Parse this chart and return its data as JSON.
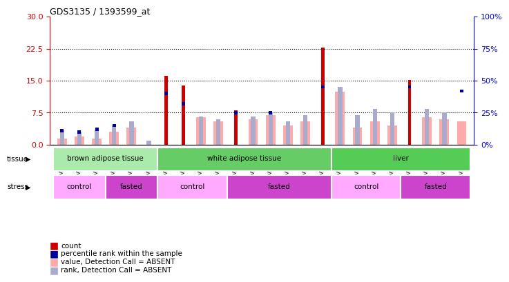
{
  "title": "GDS3135 / 1393599_at",
  "samples": [
    "GSM184414",
    "GSM184415",
    "GSM184416",
    "GSM184417",
    "GSM184418",
    "GSM184419",
    "GSM184420",
    "GSM184421",
    "GSM184422",
    "GSM184423",
    "GSM184424",
    "GSM184425",
    "GSM184426",
    "GSM184427",
    "GSM184428",
    "GSM184429",
    "GSM184430",
    "GSM184431",
    "GSM184432",
    "GSM184433",
    "GSM184434",
    "GSM184435",
    "GSM184436",
    "GSM184437"
  ],
  "count": [
    0,
    0,
    0,
    0,
    0,
    0,
    16.2,
    13.8,
    0,
    0,
    8.0,
    0,
    0,
    0,
    0,
    22.8,
    0,
    0,
    0,
    0,
    15.1,
    0,
    0,
    0
  ],
  "percentile_rank_pct": [
    11,
    10,
    12,
    15,
    0,
    0,
    40,
    32,
    0,
    0,
    25,
    0,
    25,
    0,
    0,
    45,
    0,
    0,
    0,
    0,
    45,
    0,
    0,
    42
  ],
  "value_absent": [
    1.5,
    2.0,
    1.5,
    3.0,
    4.0,
    0,
    0,
    0,
    6.5,
    5.5,
    0,
    6.0,
    7.0,
    4.5,
    5.5,
    0,
    12.5,
    4.0,
    5.5,
    4.5,
    0,
    6.5,
    6.0,
    5.5
  ],
  "rank_absent_pct": [
    11,
    10,
    12,
    15,
    18,
    3,
    0,
    0,
    22,
    20,
    0,
    22,
    25,
    18,
    23,
    0,
    45,
    23,
    28,
    25,
    0,
    28,
    25,
    0
  ],
  "ylim_left": [
    0,
    30
  ],
  "yticks_left": [
    0,
    7.5,
    15,
    22.5,
    30
  ],
  "ylim_right": [
    0,
    100
  ],
  "yticks_right": [
    0,
    25,
    50,
    75,
    100
  ],
  "color_count": "#cc0000",
  "color_percentile": "#000099",
  "color_value_absent": "#ffaaaa",
  "color_rank_absent": "#aaaacc",
  "tissue_groups": [
    {
      "label": "brown adipose tissue",
      "start": 0,
      "end": 6,
      "color": "#aaeaaa"
    },
    {
      "label": "white adipose tissue",
      "start": 6,
      "end": 16,
      "color": "#66cc66"
    },
    {
      "label": "liver",
      "start": 16,
      "end": 24,
      "color": "#55cc55"
    }
  ],
  "stress_groups": [
    {
      "label": "control",
      "start": 0,
      "end": 3,
      "color": "#ffaaff"
    },
    {
      "label": "fasted",
      "start": 3,
      "end": 6,
      "color": "#cc44cc"
    },
    {
      "label": "control",
      "start": 6,
      "end": 10,
      "color": "#ffaaff"
    },
    {
      "label": "fasted",
      "start": 10,
      "end": 16,
      "color": "#cc44cc"
    },
    {
      "label": "control",
      "start": 16,
      "end": 20,
      "color": "#ffaaff"
    },
    {
      "label": "fasted",
      "start": 20,
      "end": 24,
      "color": "#cc44cc"
    }
  ],
  "bar_width": 0.55,
  "gridline_yticks": [
    7.5,
    15,
    22.5
  ],
  "left_label_color": "#cc0000",
  "right_label_color": "#0000cc"
}
